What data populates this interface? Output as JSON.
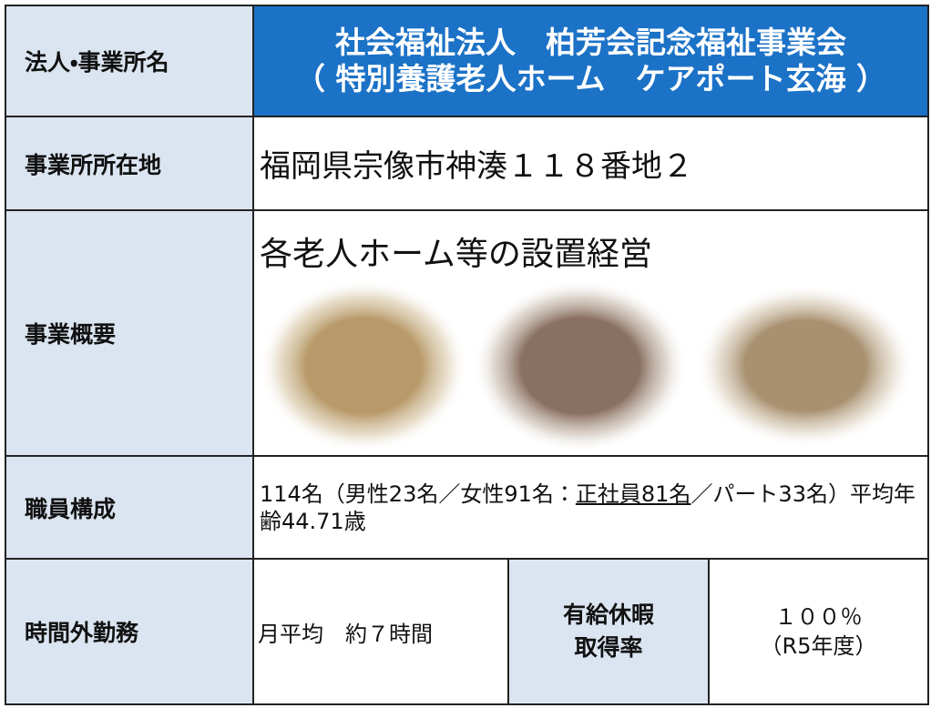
{
  "corporation": {
    "label": "法人・事業所名",
    "name": "社会福祉法人　柏芳会記念福祉事業会",
    "facility": "（ 特別養護老人ホーム　ケアポート玄海 ）"
  },
  "address": {
    "label": "事業所所在地",
    "value": "福岡県宗像市神湊１１８番地２"
  },
  "business": {
    "label": "事業概要",
    "value": "各老人ホーム等の設置経営"
  },
  "staff": {
    "label": "職員構成",
    "text_before": "114名（男性23名／女性91名：",
    "underlined": "正社員81名",
    "text_after": "／パート33名）平均年齢44.71歳"
  },
  "overtime": {
    "label": "時間外勤務",
    "value": "月平均　約７時間"
  },
  "paid_leave": {
    "label_lines": [
      "有給休暇",
      "取得率"
    ],
    "value": "１００％",
    "note": "（R5年度）"
  }
}
